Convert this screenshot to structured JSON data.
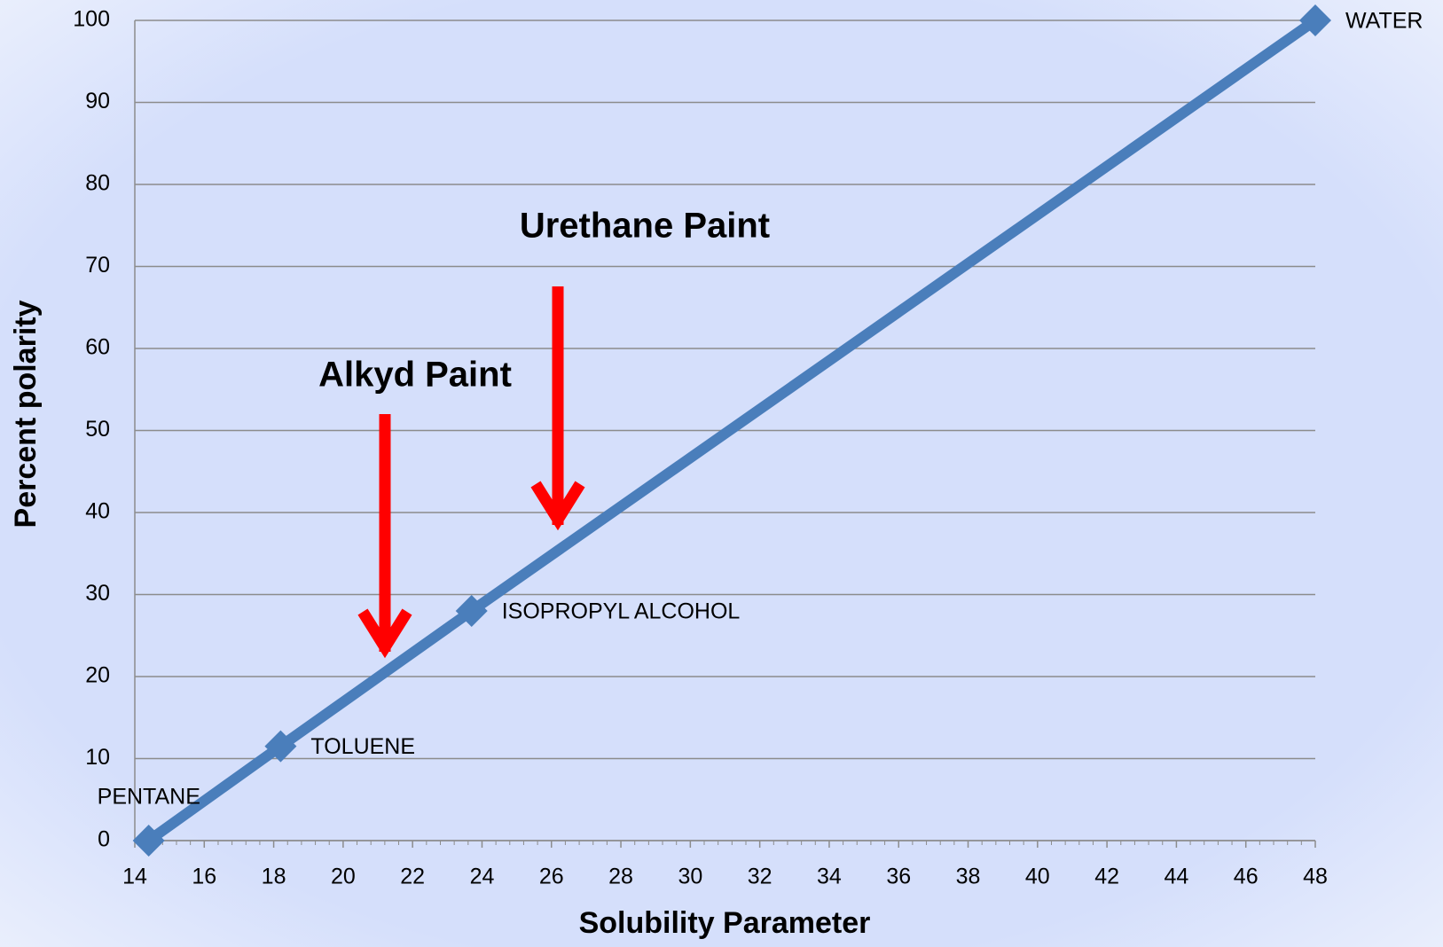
{
  "chart_data": {
    "type": "line",
    "x_label": "Solubility Parameter",
    "y_label": "Percent polarity",
    "annotations": [
      "Alkyd Paint",
      "Urethane Paint"
    ],
    "x": [
      14.4,
      18.2,
      23.7,
      48
    ],
    "point_labels": [
      "PENTANE",
      "TOLUENE",
      "ISOPROPYL ALCOHOL",
      "WATER"
    ],
    "series": [
      {
        "color": "#4a7ebb",
        "values": [
          0,
          11.5,
          28,
          100
        ]
      }
    ],
    "xlim": [
      14,
      48
    ],
    "xticks": [
      14,
      16,
      18,
      20,
      22,
      24,
      26,
      28,
      30,
      32,
      34,
      36,
      38,
      40,
      42,
      44,
      46,
      48
    ],
    "ylim": [
      0,
      100
    ],
    "yticks": [
      0,
      10,
      20,
      30,
      40,
      50,
      60,
      70,
      80,
      90,
      100
    ],
    "grid": true
  }
}
